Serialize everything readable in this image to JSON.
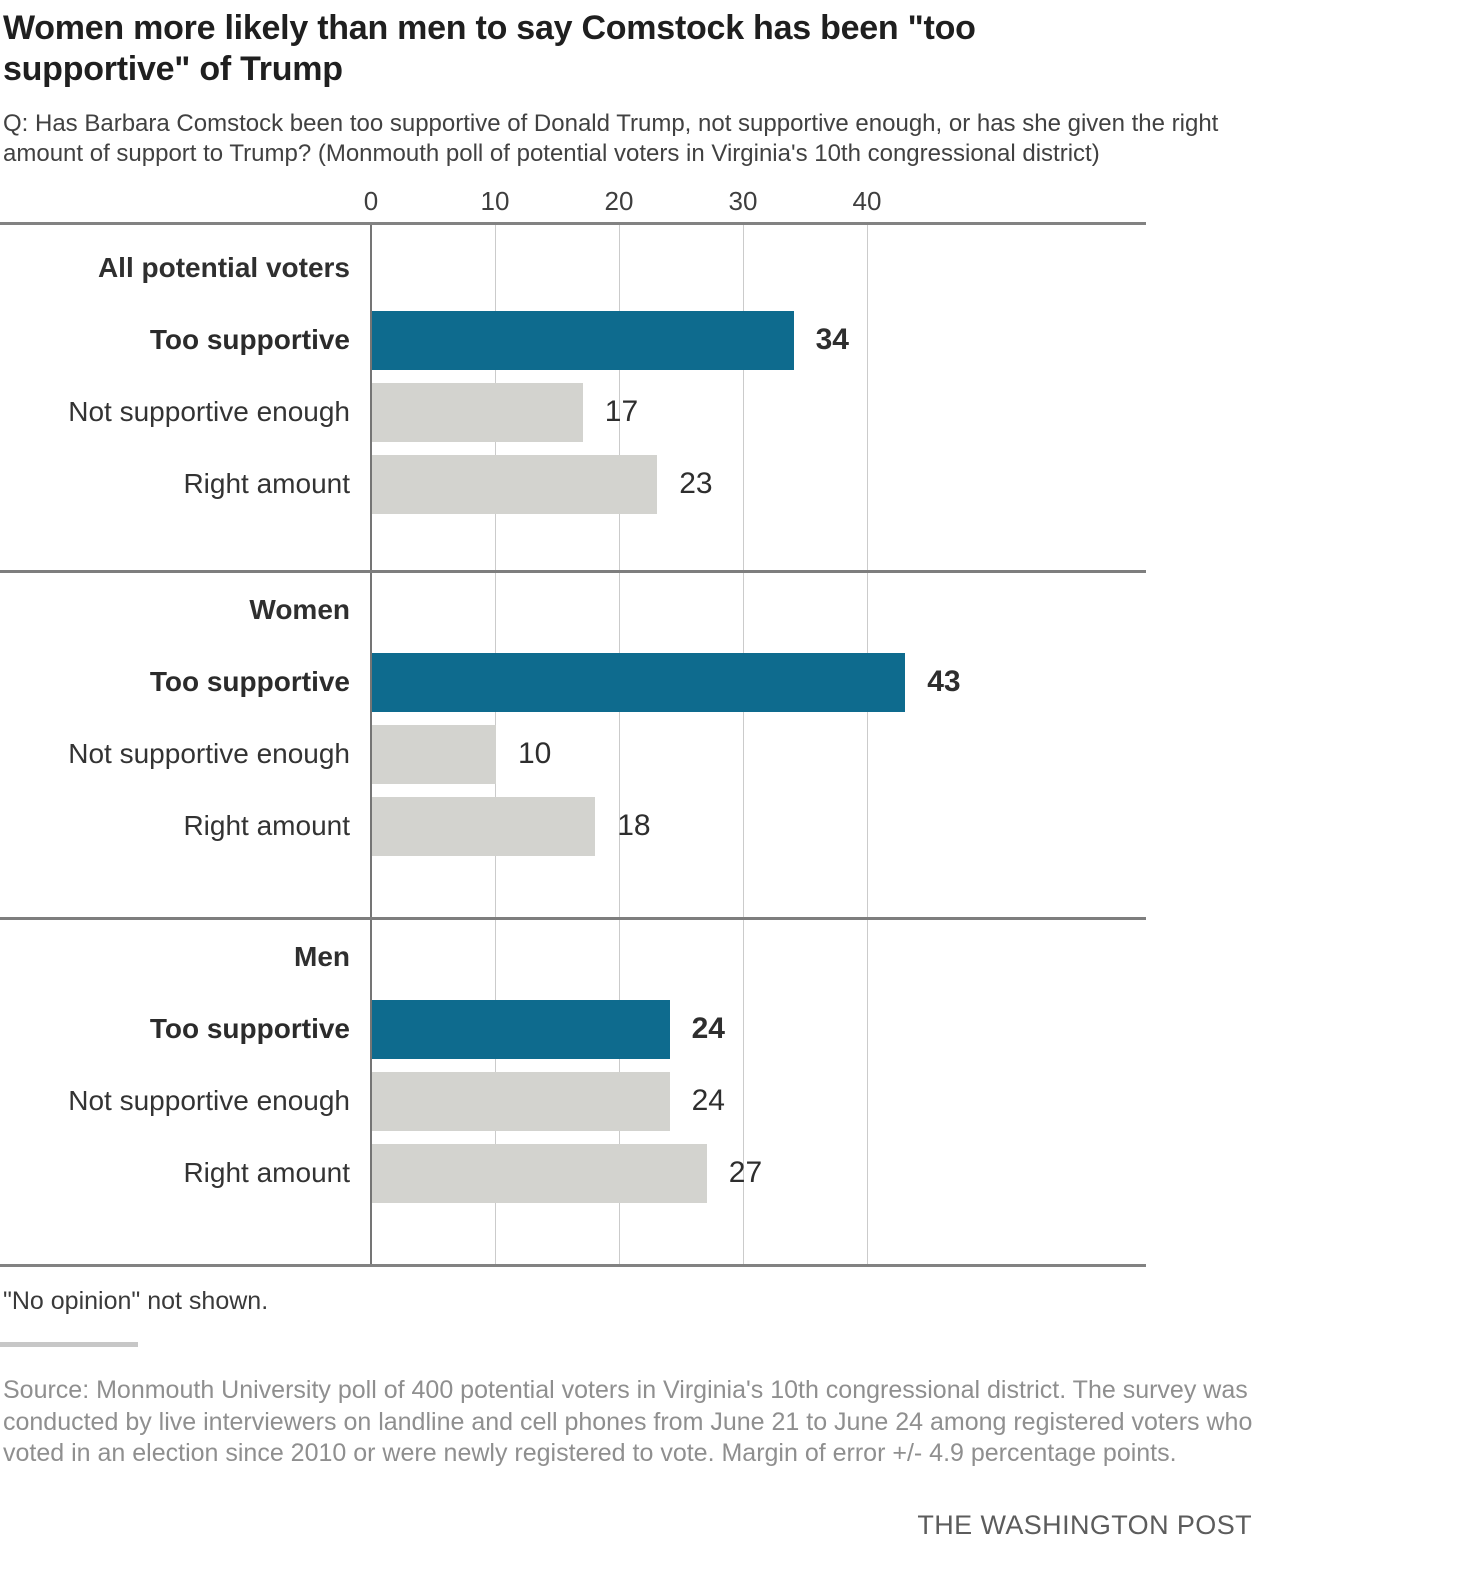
{
  "title": "Women more likely than men to say Comstock has been \"too supportive\" of Trump",
  "subtitle": "Q: Has Barbara Comstock been too supportive of Donald Trump, not supportive enough, or has she given the right amount of support to Trump? (Monmouth poll of potential voters in Virginia's 10th congressional district)",
  "chart_data": {
    "type": "bar",
    "orientation": "horizontal",
    "title": "Women more likely than men to say Comstock has been \"too supportive\" of Trump",
    "xlabel": "",
    "ylabel": "",
    "xlim": [
      0,
      62
    ],
    "x_ticks": [
      0,
      10,
      20,
      30,
      40
    ],
    "grid": true,
    "legend": "none",
    "colors": {
      "highlight_bar": "#0e6b8e",
      "muted_bar": "#d3d3cf"
    },
    "groups": [
      {
        "label": "All potential voters",
        "bars": [
          {
            "label": "Too supportive",
            "value": 34,
            "emphasis": true
          },
          {
            "label": "Not supportive enough",
            "value": 17,
            "emphasis": false
          },
          {
            "label": "Right amount",
            "value": 23,
            "emphasis": false
          }
        ]
      },
      {
        "label": "Women",
        "bars": [
          {
            "label": "Too supportive",
            "value": 43,
            "emphasis": true
          },
          {
            "label": "Not supportive enough",
            "value": 10,
            "emphasis": false
          },
          {
            "label": "Right amount",
            "value": 18,
            "emphasis": false
          }
        ]
      },
      {
        "label": "Men",
        "bars": [
          {
            "label": "Too supportive",
            "value": 24,
            "emphasis": true
          },
          {
            "label": "Not supportive enough",
            "value": 24,
            "emphasis": false
          },
          {
            "label": "Right amount",
            "value": 27,
            "emphasis": false
          }
        ]
      }
    ]
  },
  "footer": {
    "note": "\"No opinion\" not shown.",
    "source": "Source: Monmouth University poll of 400 potential voters in Virginia's 10th congressional district. The survey was conducted by live interviewers on landline and cell phones from June 21 to June 24 among registered voters who voted in an election since 2010 or were newly registered to vote. Margin of error +/- 4.9 percentage points.",
    "credit": "THE WASHINGTON POST"
  }
}
